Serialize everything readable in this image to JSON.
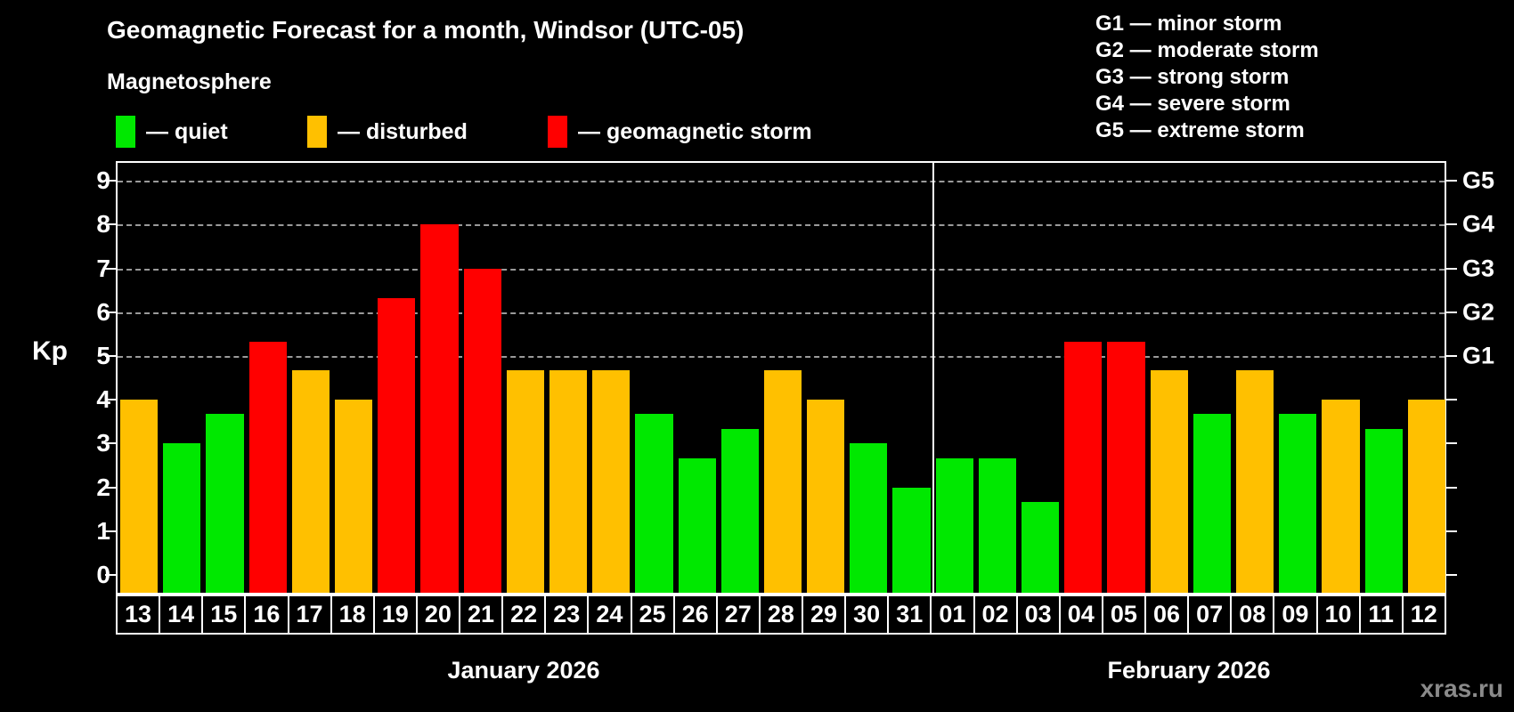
{
  "title": "Geomagnetic Forecast for a month, Windsor (UTC-05)",
  "subtitle": "Magnetosphere",
  "legend": [
    {
      "label": "— quiet",
      "status": "quiet"
    },
    {
      "label": "— disturbed",
      "status": "disturbed"
    },
    {
      "label": "— geomagnetic storm",
      "status": "storm"
    }
  ],
  "g_scale_legend": [
    "G1 — minor storm",
    "G2 — moderate storm",
    "G3 — strong storm",
    "G4 — severe storm",
    "G5 — extreme storm"
  ],
  "watermark": "xras.ru",
  "chart_data": {
    "type": "bar",
    "ylabel": "Kp",
    "ylim": [
      0,
      9
    ],
    "y_ticks": [
      0,
      1,
      2,
      3,
      4,
      5,
      6,
      7,
      8,
      9
    ],
    "grid": "horizontal dashed lines at Kp 5..9 only",
    "legend_position": "top-left",
    "right_axis_labels": [
      {
        "kp": 5,
        "label": "G1"
      },
      {
        "kp": 6,
        "label": "G2"
      },
      {
        "kp": 7,
        "label": "G3"
      },
      {
        "kp": 8,
        "label": "G4"
      },
      {
        "kp": 9,
        "label": "G5"
      }
    ],
    "colors": {
      "quiet": "#00E800",
      "disturbed": "#FFC000",
      "storm": "#FF0000",
      "background": "#000000",
      "axis": "#FFFFFF"
    },
    "months": [
      {
        "label": "January 2026",
        "days": 19
      },
      {
        "label": "February 2026",
        "days": 12
      }
    ],
    "bars": [
      {
        "day": "13",
        "kp": 4.0,
        "status": "disturbed"
      },
      {
        "day": "14",
        "kp": 3.0,
        "status": "quiet"
      },
      {
        "day": "15",
        "kp": 3.67,
        "status": "quiet"
      },
      {
        "day": "16",
        "kp": 5.33,
        "status": "storm"
      },
      {
        "day": "17",
        "kp": 4.67,
        "status": "disturbed"
      },
      {
        "day": "18",
        "kp": 4.0,
        "status": "disturbed"
      },
      {
        "day": "19",
        "kp": 6.33,
        "status": "storm"
      },
      {
        "day": "20",
        "kp": 8.0,
        "status": "storm"
      },
      {
        "day": "21",
        "kp": 7.0,
        "status": "storm"
      },
      {
        "day": "22",
        "kp": 4.67,
        "status": "disturbed"
      },
      {
        "day": "23",
        "kp": 4.67,
        "status": "disturbed"
      },
      {
        "day": "24",
        "kp": 4.67,
        "status": "disturbed"
      },
      {
        "day": "25",
        "kp": 3.67,
        "status": "quiet"
      },
      {
        "day": "26",
        "kp": 2.67,
        "status": "quiet"
      },
      {
        "day": "27",
        "kp": 3.33,
        "status": "quiet"
      },
      {
        "day": "28",
        "kp": 4.67,
        "status": "disturbed"
      },
      {
        "day": "29",
        "kp": 4.0,
        "status": "disturbed"
      },
      {
        "day": "30",
        "kp": 3.0,
        "status": "quiet"
      },
      {
        "day": "31",
        "kp": 2.0,
        "status": "quiet"
      },
      {
        "day": "01",
        "kp": 2.67,
        "status": "quiet"
      },
      {
        "day": "02",
        "kp": 2.67,
        "status": "quiet"
      },
      {
        "day": "03",
        "kp": 1.67,
        "status": "quiet"
      },
      {
        "day": "04",
        "kp": 5.33,
        "status": "storm"
      },
      {
        "day": "05",
        "kp": 5.33,
        "status": "storm"
      },
      {
        "day": "06",
        "kp": 4.67,
        "status": "disturbed"
      },
      {
        "day": "07",
        "kp": 3.67,
        "status": "quiet"
      },
      {
        "day": "08",
        "kp": 4.67,
        "status": "disturbed"
      },
      {
        "day": "09",
        "kp": 3.67,
        "status": "quiet"
      },
      {
        "day": "10",
        "kp": 4.0,
        "status": "disturbed"
      },
      {
        "day": "11",
        "kp": 3.33,
        "status": "quiet"
      },
      {
        "day": "12",
        "kp": 4.0,
        "status": "disturbed"
      }
    ]
  }
}
